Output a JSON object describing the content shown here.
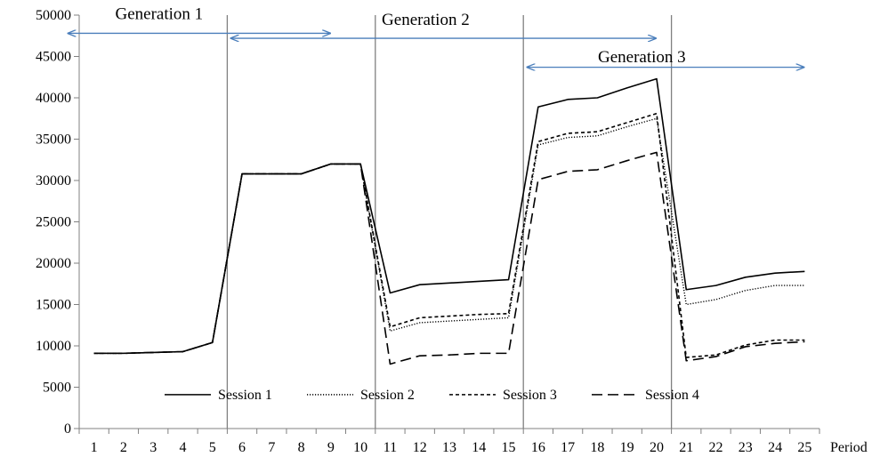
{
  "chart_data": {
    "type": "line",
    "title": "",
    "xlabel": "Period",
    "ylabel": "",
    "x": [
      1,
      2,
      3,
      4,
      5,
      6,
      7,
      8,
      9,
      10,
      11,
      12,
      13,
      14,
      15,
      16,
      17,
      18,
      19,
      20,
      21,
      22,
      23,
      24,
      25
    ],
    "ylim": [
      0,
      50000
    ],
    "yticks": [
      0,
      5000,
      10000,
      15000,
      20000,
      25000,
      30000,
      35000,
      40000,
      45000,
      50000
    ],
    "grid": false,
    "legend_position": "bottom-center",
    "series": [
      {
        "name": "Session 1",
        "style": "solid",
        "values": [
          9100,
          9100,
          9200,
          9300,
          10400,
          30800,
          30800,
          30800,
          32000,
          32000,
          16400,
          17400,
          17600,
          17800,
          18000,
          38900,
          39800,
          40000,
          41200,
          42300,
          16800,
          17300,
          18300,
          18800,
          19000
        ]
      },
      {
        "name": "Session 2",
        "style": "dotted",
        "values": [
          9100,
          9100,
          9200,
          9300,
          10400,
          30800,
          30800,
          30800,
          32000,
          32000,
          11800,
          12800,
          13000,
          13200,
          13400,
          34300,
          35200,
          35400,
          36500,
          37500,
          15000,
          15600,
          16700,
          17300,
          17300
        ]
      },
      {
        "name": "Session 3",
        "style": "short-dash",
        "values": [
          9100,
          9100,
          9200,
          9300,
          10400,
          30800,
          30800,
          30800,
          32000,
          32000,
          12300,
          13400,
          13600,
          13800,
          13900,
          34700,
          35700,
          35900,
          37000,
          38100,
          8600,
          8900,
          10100,
          10700,
          10700
        ]
      },
      {
        "name": "Session 4",
        "style": "long-dash",
        "values": [
          9100,
          9100,
          9200,
          9300,
          10400,
          30800,
          30800,
          30800,
          32000,
          32000,
          7800,
          8800,
          8900,
          9100,
          9100,
          30100,
          31100,
          31300,
          32400,
          33400,
          8200,
          8700,
          9900,
          10300,
          10500
        ]
      }
    ],
    "dividers_after_period": [
      5.5,
      10.5,
      15.5,
      20.5
    ],
    "annotations": [
      {
        "label": "Generation 1",
        "from_period": 0.1,
        "to_period": 9.0,
        "level": 47800
      },
      {
        "label": "Generation 2",
        "from_period": 5.6,
        "to_period": 20.0,
        "level": 47200
      },
      {
        "label": "Generation 3",
        "from_period": 15.6,
        "to_period": 25.0,
        "level": 43700
      }
    ],
    "colors": {
      "series": "#000000",
      "divider": "#808080",
      "arrow": "#4a7ebb"
    }
  }
}
